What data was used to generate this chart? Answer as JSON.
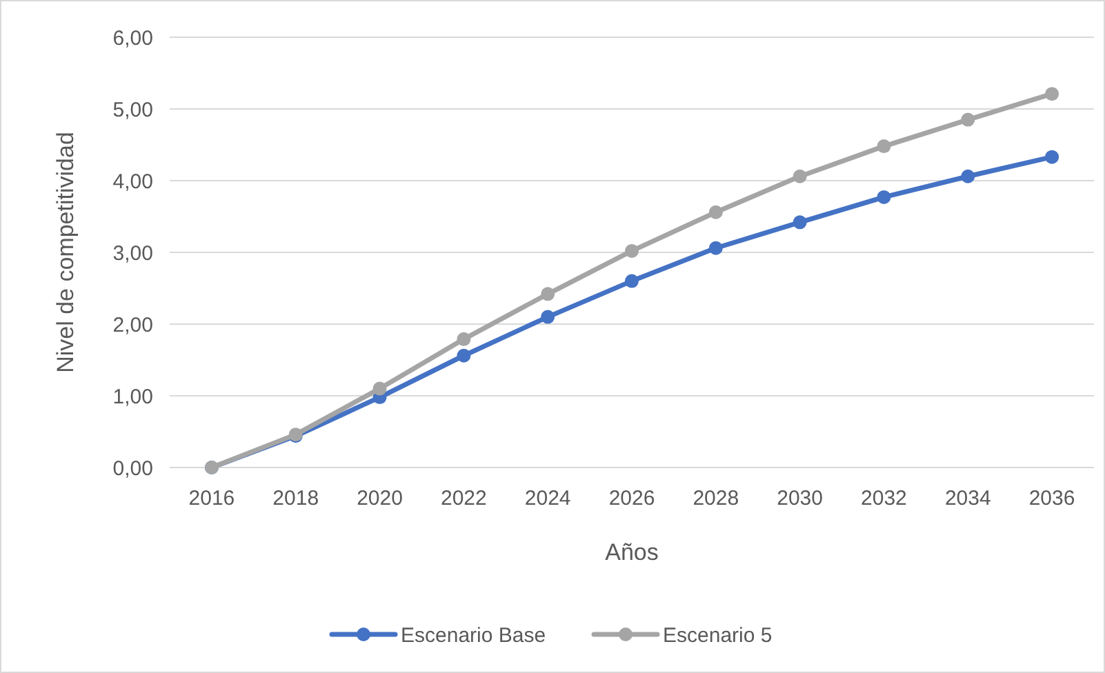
{
  "chart_data": {
    "type": "line",
    "xlabel": "Años",
    "ylabel": "Nivel de competitividad",
    "categories": [
      "2016",
      "2018",
      "2020",
      "2022",
      "2024",
      "2026",
      "2028",
      "2030",
      "2032",
      "2034",
      "2036"
    ],
    "series": [
      {
        "name": "Escenario Base",
        "color": "#4472c4",
        "values": [
          0,
          0.44,
          0.98,
          1.56,
          2.1,
          2.6,
          3.06,
          3.42,
          3.77,
          4.06,
          4.33
        ]
      },
      {
        "name": "Escenario 5",
        "color": "#a5a5a5",
        "values": [
          0,
          0.46,
          1.1,
          1.79,
          2.42,
          3.02,
          3.56,
          4.06,
          4.48,
          4.85,
          5.21
        ]
      }
    ],
    "ylim": [
      0,
      6
    ],
    "yticks": [
      {
        "value": 0,
        "label": "0,00"
      },
      {
        "value": 1,
        "label": "1,00"
      },
      {
        "value": 2,
        "label": "2,00"
      },
      {
        "value": 3,
        "label": "3,00"
      },
      {
        "value": 4,
        "label": "4,00"
      },
      {
        "value": 5,
        "label": "5,00"
      },
      {
        "value": 6,
        "label": "6,00"
      }
    ],
    "grid": "y",
    "legend": "bottom",
    "marker": "circle",
    "line_style": "solid"
  }
}
